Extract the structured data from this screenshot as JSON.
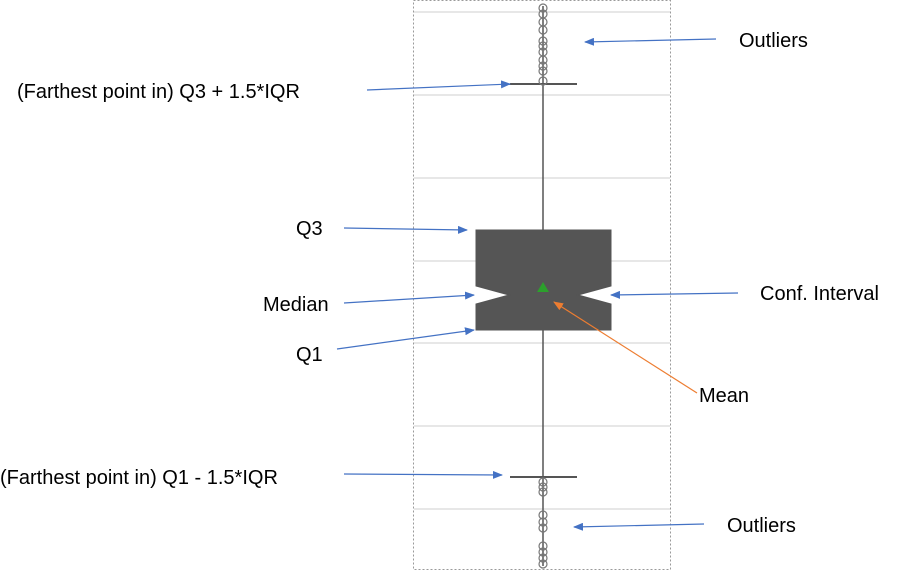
{
  "labels": {
    "outliers_top": "Outliers",
    "upper_whisker": "(Farthest point in) Q3 + 1.5*IQR",
    "q3": "Q3",
    "median": "Median",
    "q1": "Q1",
    "conf_interval": "Conf. Interval",
    "mean": "Mean",
    "lower_whisker": "(Farthest point in) Q1 - 1.5*IQR",
    "outliers_bottom": "Outliers"
  },
  "colors": {
    "box_fill": "#555555",
    "whisker": "#555555",
    "outlier_stroke": "#777777",
    "grid": "#cfcfcf",
    "frame": "#9a9a9a",
    "arrow_blue": "#4472c4",
    "arrow_orange": "#ed7d31",
    "mean_marker": "#2ca02c"
  },
  "icons": {
    "mean_marker": "green-triangle-icon",
    "outlier_marker": "hollow-circle-icon"
  }
}
